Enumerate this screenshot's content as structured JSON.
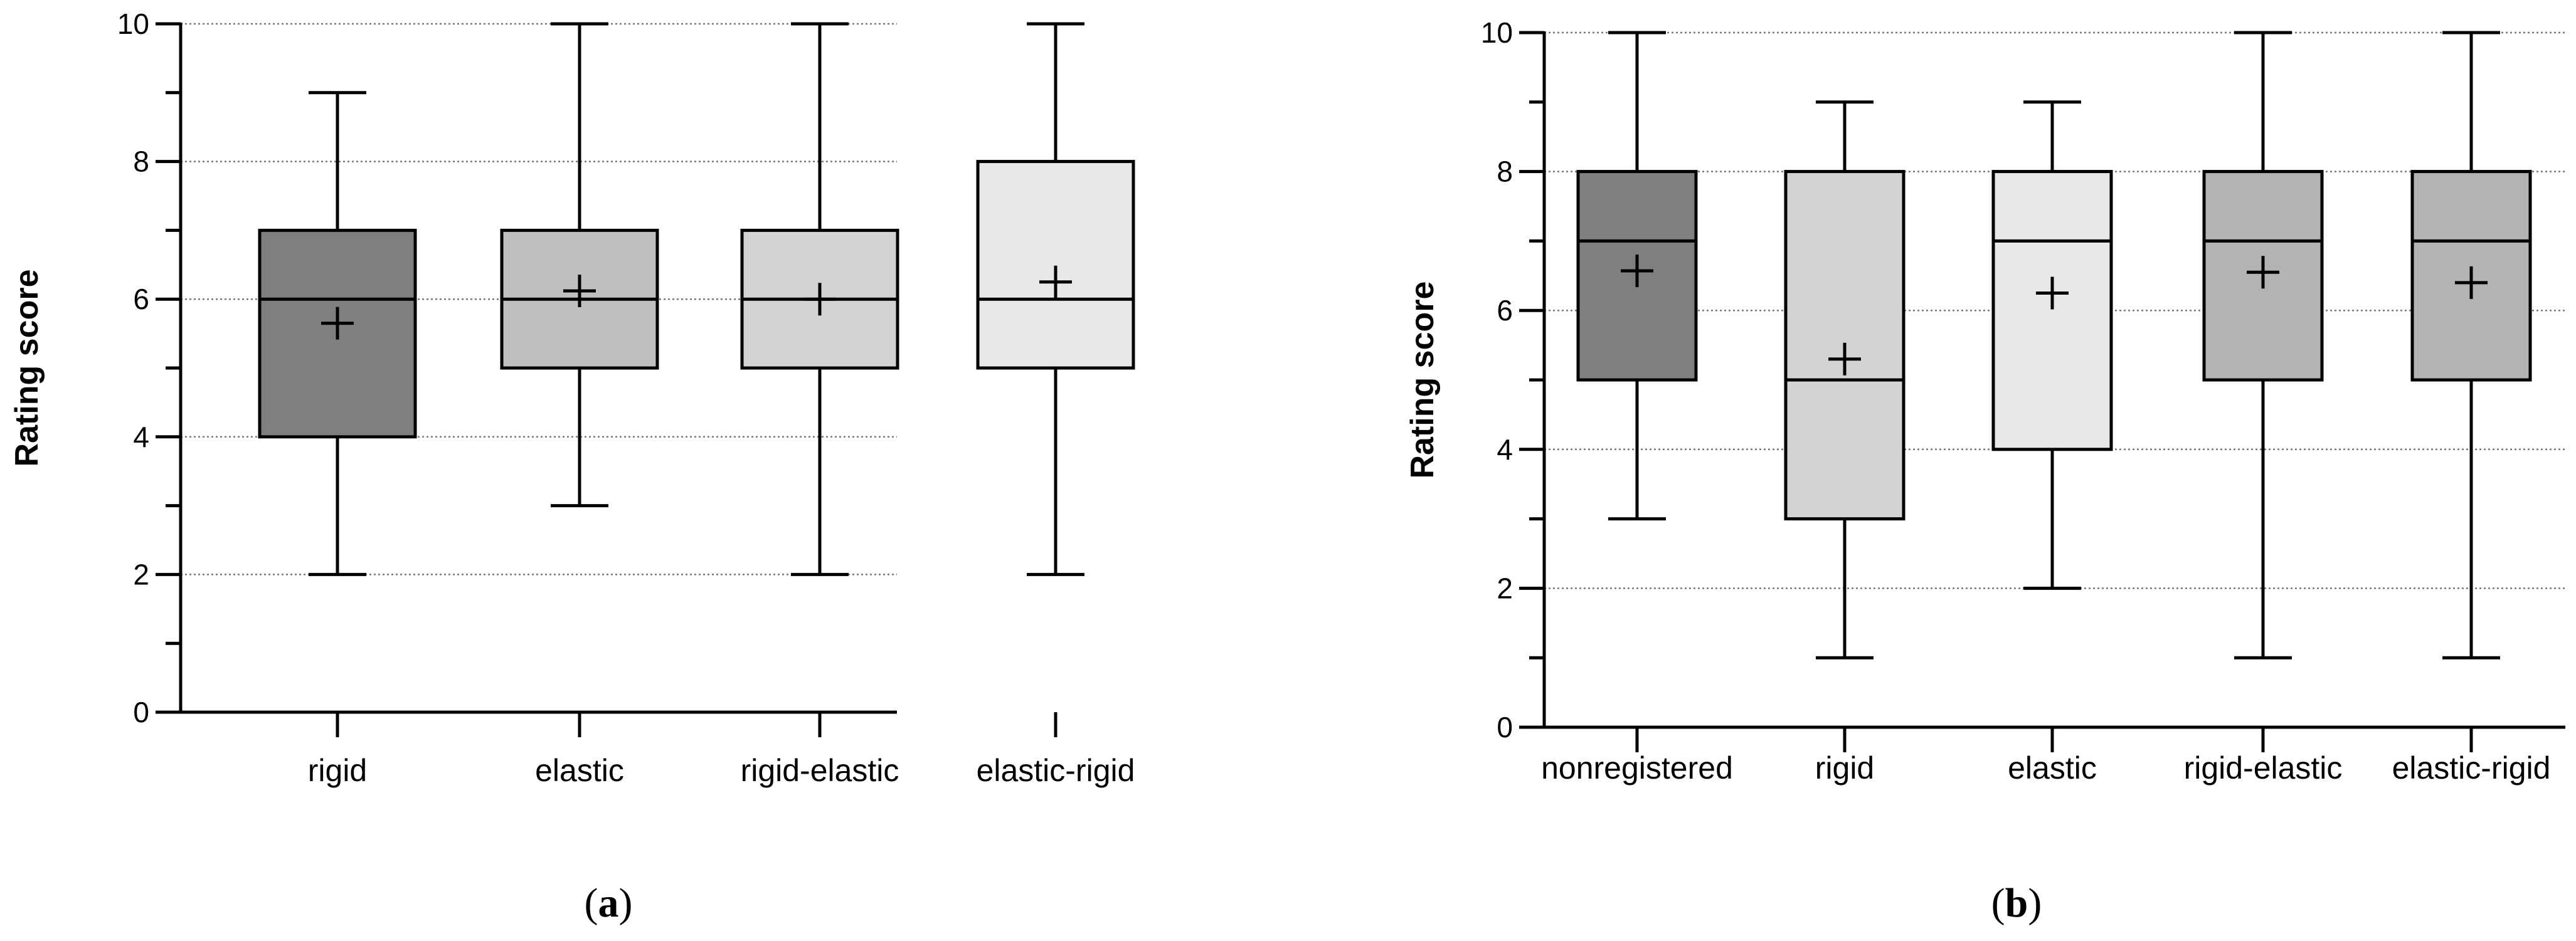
{
  "chart_data": [
    {
      "type": "box",
      "panel_label": "a",
      "ylabel": "Rating score",
      "xlabel": "",
      "ylim": [
        0,
        10
      ],
      "yticks": [
        0,
        2,
        4,
        6,
        8,
        10
      ],
      "grid": "horizontal dotted",
      "categories": [
        "rigid",
        "elastic",
        "rigid-elastic",
        "elastic-rigid"
      ],
      "boxes": [
        {
          "min": 2,
          "q1": 4,
          "median": 6,
          "q3": 7,
          "max": 9,
          "mean": 5.65,
          "color": "#7f7f7f"
        },
        {
          "min": 3,
          "q1": 5,
          "median": 6,
          "q3": 7,
          "max": 10,
          "mean": 6.12,
          "color": "#bfbfbf"
        },
        {
          "min": 2,
          "q1": 5,
          "median": 6,
          "q3": 7,
          "max": 10,
          "mean": 6.0,
          "color": "#d3d3d3"
        },
        {
          "min": 2,
          "q1": 5,
          "median": 6,
          "q3": 8,
          "max": 10,
          "mean": 6.25,
          "color": "#e8e8e8"
        }
      ]
    },
    {
      "type": "box",
      "panel_label": "b",
      "ylabel": "Rating score",
      "xlabel": "",
      "ylim": [
        0,
        10
      ],
      "yticks": [
        0,
        2,
        4,
        6,
        8,
        10
      ],
      "grid": "horizontal dotted",
      "categories": [
        "nonregistered",
        "rigid",
        "elastic",
        "rigid-elastic",
        "elastic-rigid"
      ],
      "boxes": [
        {
          "min": 3,
          "q1": 5,
          "median": 7,
          "q3": 8,
          "max": 10,
          "mean": 6.57,
          "color": "#7f7f7f"
        },
        {
          "min": 1,
          "q1": 3,
          "median": 5,
          "q3": 8,
          "max": 9,
          "mean": 5.3,
          "color": "#d3d3d3"
        },
        {
          "min": 2,
          "q1": 4,
          "median": 7,
          "q3": 8,
          "max": 9,
          "mean": 6.25,
          "color": "#e8e8e8"
        },
        {
          "min": 1,
          "q1": 5,
          "median": 7,
          "q3": 8,
          "max": 10,
          "mean": 6.55,
          "color": "#b3b3b3"
        },
        {
          "min": 1,
          "q1": 5,
          "median": 7,
          "q3": 8,
          "max": 10,
          "mean": 6.4,
          "color": "#b3b3b3"
        }
      ]
    }
  ]
}
